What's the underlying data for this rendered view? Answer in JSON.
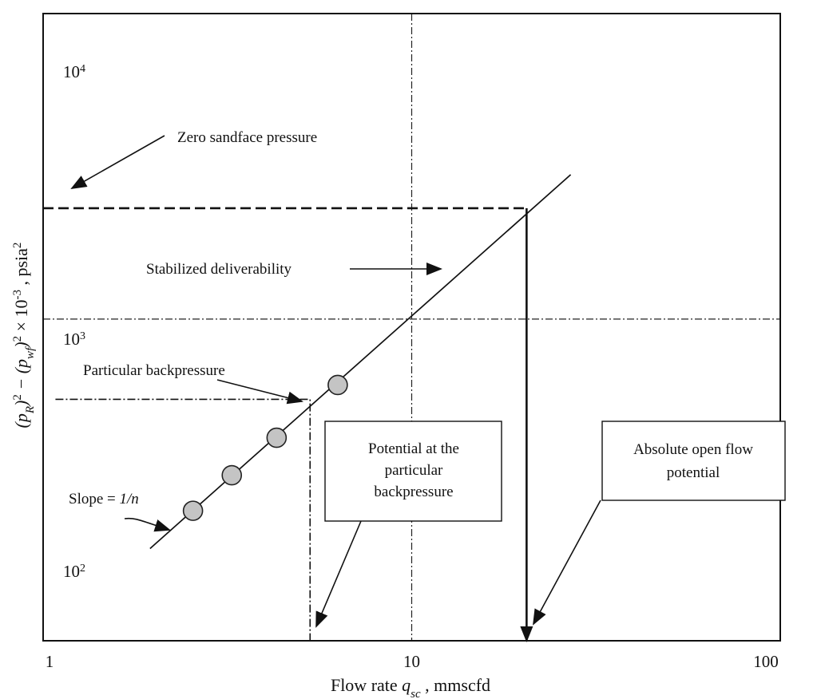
{
  "chart_data": {
    "type": "line",
    "x_scale": "log",
    "y_scale": "log",
    "xlim": [
      1,
      100
    ],
    "ylim": [
      70,
      12500
    ],
    "x_ticks": [
      {
        "value": 1,
        "label": "1"
      },
      {
        "value": 10,
        "label": "10"
      },
      {
        "value": 100,
        "label": "100"
      }
    ],
    "y_ticks": [
      {
        "value": 100,
        "base": "10",
        "exp": "2"
      },
      {
        "value": 1000,
        "base": "10",
        "exp": "3"
      },
      {
        "value": 10000,
        "base": "10",
        "exp": "4"
      }
    ],
    "xlabel": {
      "main": "Flow rate ",
      "var": "q",
      "sub": "sc",
      "rest": " , mmscfd"
    },
    "ylabel": {
      "p1": "(p",
      "sub1": "R",
      "p2": ")",
      "sup1": "2",
      "p3": " − (p",
      "sub2": "wf",
      "p4": ")",
      "sup2": "2",
      "p5": " × 10",
      "sup3": "-3",
      "p6": " , psia",
      "sup4": "2"
    },
    "grid": false,
    "series": [
      {
        "line": [
          [
            1.95,
            150
          ],
          [
            27,
            3300
          ]
        ],
        "points": [
          [
            2.55,
            205
          ],
          [
            3.25,
            275
          ],
          [
            4.3,
            375
          ],
          [
            6.3,
            580
          ]
        ]
      }
    ],
    "reference_lines": {
      "x": [
        10,
        5.3
      ],
      "y": [
        1000,
        515
      ],
      "zero_sandface_y": 2500,
      "aof_x": 20.5
    },
    "annotations": {
      "zero_sandface": "Zero sandface pressure",
      "stabilized": "Stabilized deliverability",
      "particular": "Particular backpressure",
      "slope_prefix": "Slope = ",
      "slope_value": "1/n",
      "potential_box": [
        "Potential at the",
        "particular",
        "backpressure"
      ],
      "aof_box": [
        "Absolute open flow",
        "potential"
      ]
    }
  }
}
